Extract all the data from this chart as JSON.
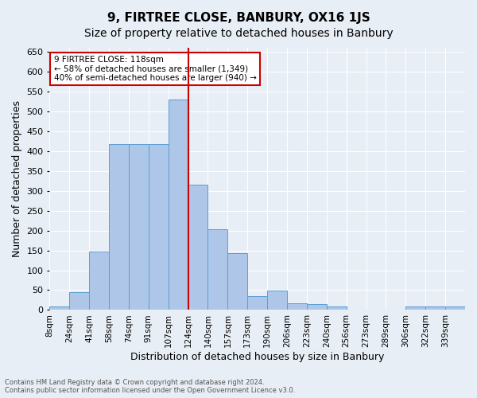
{
  "title": "9, FIRTREE CLOSE, BANBURY, OX16 1JS",
  "subtitle": "Size of property relative to detached houses in Banbury",
  "xlabel": "Distribution of detached houses by size in Banbury",
  "ylabel": "Number of detached properties",
  "footer_line1": "Contains HM Land Registry data © Crown copyright and database right 2024.",
  "footer_line2": "Contains public sector information licensed under the Open Government Licence v3.0.",
  "categories": [
    "8sqm",
    "24sqm",
    "41sqm",
    "58sqm",
    "74sqm",
    "91sqm",
    "107sqm",
    "124sqm",
    "140sqm",
    "157sqm",
    "173sqm",
    "190sqm",
    "206sqm",
    "223sqm",
    "240sqm",
    "256sqm",
    "273sqm",
    "289sqm",
    "306sqm",
    "322sqm",
    "339sqm"
  ],
  "values": [
    8,
    44,
    148,
    418,
    418,
    418,
    530,
    315,
    204,
    143,
    35,
    49,
    16,
    15,
    8,
    0,
    0,
    0,
    8,
    8,
    8
  ],
  "bar_color": "#aec6e8",
  "bar_edge_color": "#5a9fd4",
  "vline_x": 7,
  "vline_color": "#cc0000",
  "annotation_text": "9 FIRTREE CLOSE: 118sqm\n← 58% of detached houses are smaller (1,349)\n40% of semi-detached houses are larger (940) →",
  "annotation_box_color": "#ffffff",
  "annotation_box_edge": "#cc0000",
  "ylim": [
    0,
    660
  ],
  "yticks": [
    0,
    50,
    100,
    150,
    200,
    250,
    300,
    350,
    400,
    450,
    500,
    550,
    600,
    650
  ],
  "bg_color": "#e8eef5",
  "grid_color": "#ffffff",
  "title_fontsize": 11,
  "subtitle_fontsize": 10,
  "xlabel_fontsize": 9,
  "ylabel_fontsize": 9
}
